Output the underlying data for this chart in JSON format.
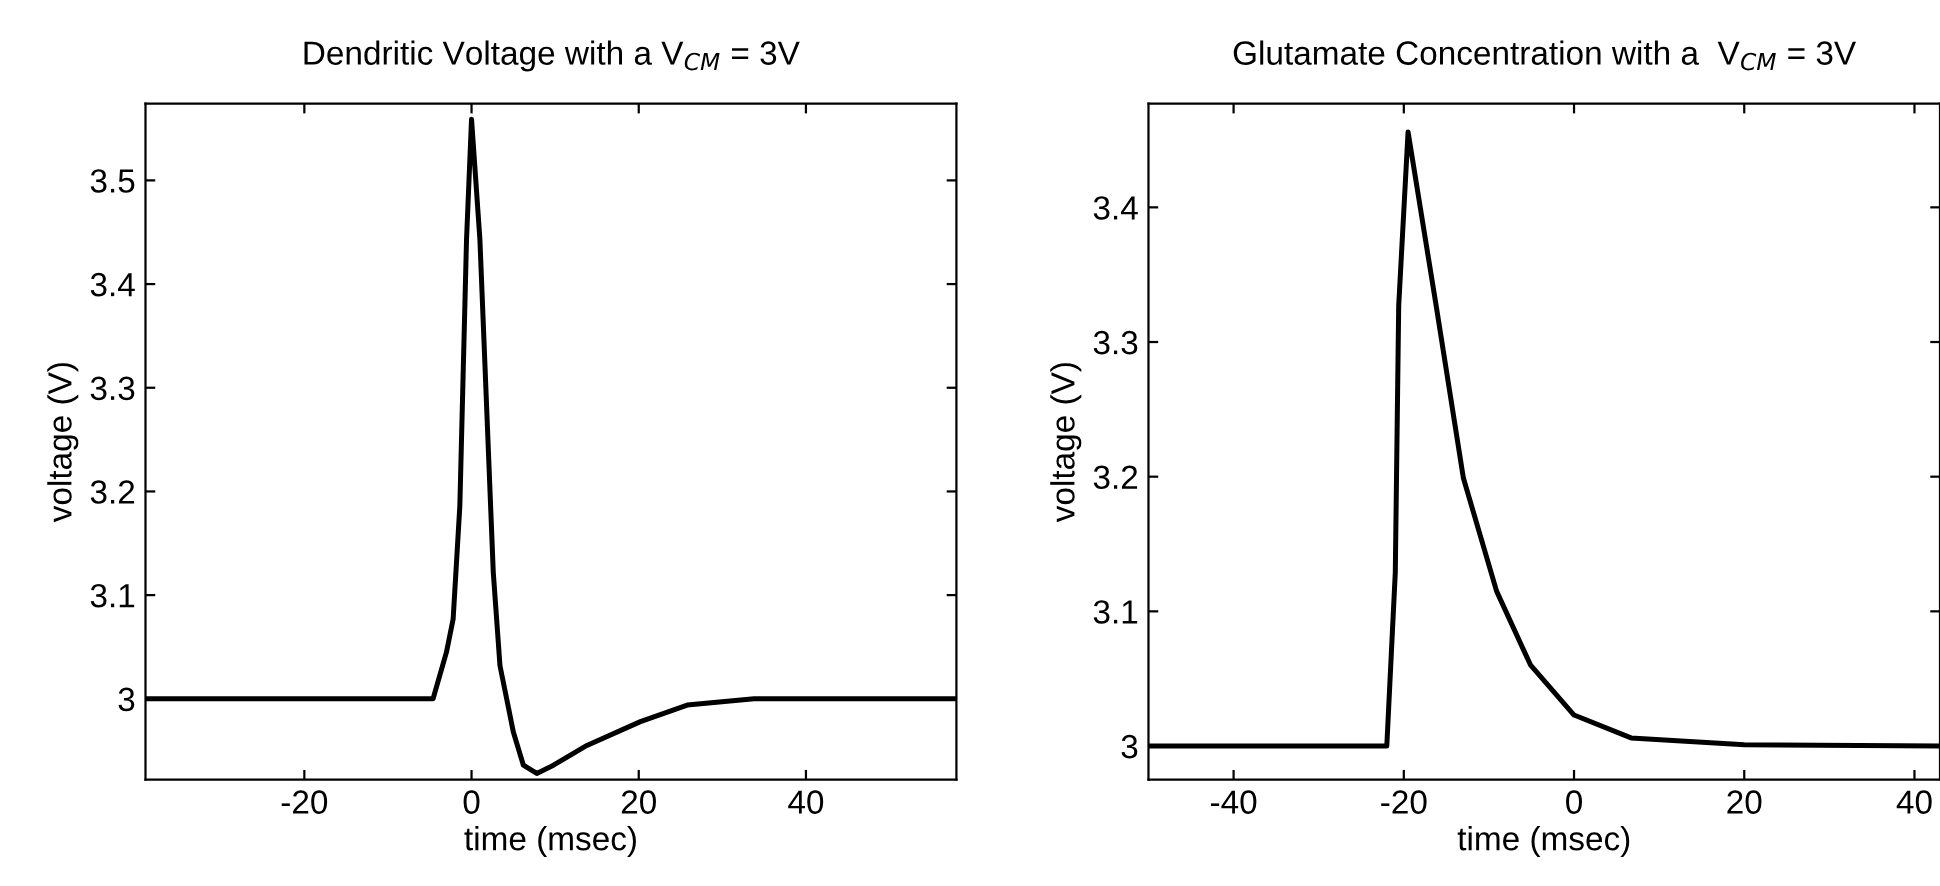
{
  "chart_data": [
    {
      "type": "line",
      "title": "Dendritic Voltage with a V$_{CM}$ = 3V",
      "xlabel": "time (msec)",
      "ylabel": "voltage (V)",
      "series": [
        {
          "color": "#000000",
          "x": [
            -39,
            -4.6,
            -3.0,
            -2.2,
            -1.4,
            -0.6,
            0,
            1.0,
            2.6,
            3.4,
            5.0,
            6.2,
            7.8,
            9.8,
            13.8,
            20.2,
            25.8,
            33.8,
            58
          ],
          "values": [
            3.0,
            3.0,
            3.045,
            3.077,
            3.186,
            3.443,
            3.559,
            3.443,
            3.122,
            3.032,
            2.968,
            2.936,
            2.928,
            2.936,
            2.955,
            2.978,
            2.994,
            3.0,
            3.0
          ]
        }
      ],
      "xlim": [
        -39,
        58
      ],
      "ylim": [
        2.922,
        3.574
      ],
      "xticks": [
        -20,
        0,
        20,
        40
      ],
      "yticks": [
        3,
        3.1,
        3.2,
        3.3,
        3.4,
        3.5
      ],
      "grid": false,
      "legend": false
    },
    {
      "type": "line",
      "title": "Glutamate Concentration with a  V$_{CM}$ = 3V",
      "xlabel": "time (msec)",
      "ylabel": "voltage (V)",
      "series": [
        {
          "color": "#000000",
          "x": [
            -50,
            -22,
            -21,
            -20.6,
            -19.5,
            -16.2,
            -13.0,
            -9.1,
            -5.1,
            0,
            6.7,
            20,
            43
          ],
          "values": [
            3.0,
            3.0,
            3.129,
            3.327,
            3.456,
            3.327,
            3.199,
            3.115,
            3.06,
            3.023,
            3.006,
            3.001,
            3.0
          ]
        }
      ],
      "xlim": [
        -50,
        43
      ],
      "ylim": [
        2.975,
        3.477
      ],
      "xticks": [
        -40,
        -20,
        0,
        20,
        40
      ],
      "yticks": [
        3,
        3.1,
        3.2,
        3.3,
        3.4
      ],
      "grid": false,
      "legend": false
    }
  ]
}
